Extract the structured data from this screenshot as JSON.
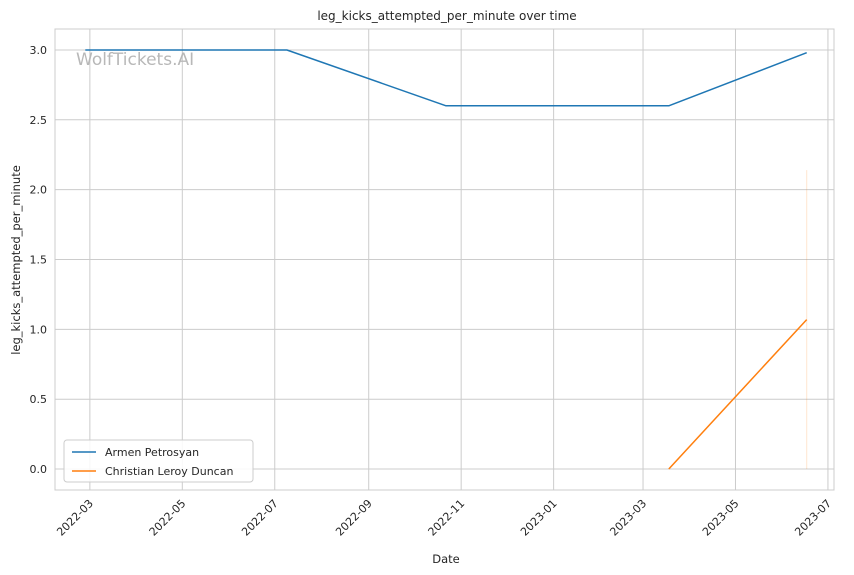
{
  "chart_data": {
    "type": "line",
    "title": "leg_kicks_attempted_per_minute over time",
    "xlabel": "Date",
    "ylabel": "leg_kicks_attempted_per_minute",
    "watermark": "WolfTickets.AI",
    "x_axis_type": "date",
    "xlim": [
      "2022-02-06",
      "2023-07-05"
    ],
    "ylim": [
      -0.15,
      3.15
    ],
    "xticks": [
      "2022-03-01",
      "2022-05-01",
      "2022-07-01",
      "2022-09-01",
      "2022-11-01",
      "2023-01-01",
      "2023-03-01",
      "2023-05-01",
      "2023-07-01"
    ],
    "xtick_labels": [
      "2022-03",
      "2022-05",
      "2022-07",
      "2022-09",
      "2022-11",
      "2023-01",
      "2023-03",
      "2023-05",
      "2023-07"
    ],
    "yticks": [
      0.0,
      0.5,
      1.0,
      1.5,
      2.0,
      2.5,
      3.0
    ],
    "ytick_labels": [
      "0.0",
      "0.5",
      "1.0",
      "1.5",
      "2.0",
      "2.5",
      "3.0"
    ],
    "grid": true,
    "legend_position": "lower-left",
    "series": [
      {
        "name": "Armen Petrosyan",
        "color": "#1f77b4",
        "points": [
          {
            "x": "2022-02-26",
            "y": 3.0
          },
          {
            "x": "2022-07-09",
            "y": 3.0
          },
          {
            "x": "2022-10-22",
            "y": 2.6
          },
          {
            "x": "2023-03-18",
            "y": 2.6
          },
          {
            "x": "2023-06-17",
            "y": 2.98
          }
        ]
      },
      {
        "name": "Christian Leroy Duncan",
        "color": "#ff7f0e",
        "points": [
          {
            "x": "2023-03-18",
            "y": 0.0
          },
          {
            "x": "2023-06-17",
            "y": 1.07
          }
        ],
        "band": {
          "x": "2023-06-17",
          "low": 0.0,
          "high": 2.14
        }
      }
    ]
  }
}
